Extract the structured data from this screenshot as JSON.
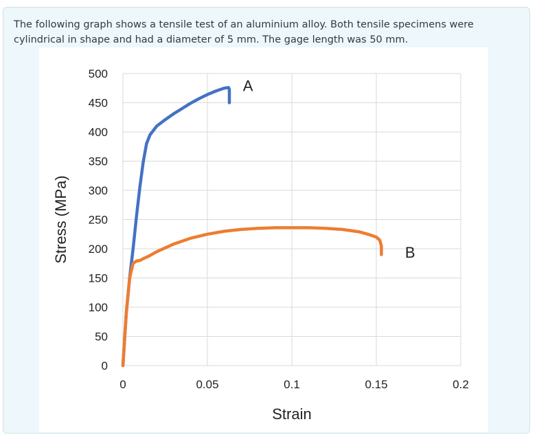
{
  "prompt": {
    "line1": "The following graph shows a tensile test of an aluminium alloy. Both tensile specimens were",
    "line2": "cylindrical in shape and had a diameter of 5 mm. The gage length was 50 mm."
  },
  "chart_data": {
    "type": "line",
    "title": "",
    "xlabel": "Strain",
    "ylabel": "Stress (MPa)",
    "xlim": [
      0,
      0.2
    ],
    "ylim": [
      0,
      500
    ],
    "grid": true,
    "x_ticks": [
      "0",
      "0.05",
      "0.1",
      "0.15",
      "0.2"
    ],
    "y_ticks": [
      "0",
      "50",
      "100",
      "150",
      "200",
      "250",
      "300",
      "350",
      "400",
      "450",
      "500"
    ],
    "series": [
      {
        "name": "A",
        "color": "#4472c4",
        "x": [
          0,
          0.002,
          0.004,
          0.006,
          0.008,
          0.01,
          0.012,
          0.014,
          0.016,
          0.02,
          0.025,
          0.03,
          0.035,
          0.04,
          0.045,
          0.05,
          0.055,
          0.06,
          0.0625,
          0.063,
          0.063,
          0.063
        ],
        "y": [
          0,
          90,
          150,
          200,
          255,
          305,
          348,
          380,
          395,
          410,
          421,
          431,
          440,
          449,
          457,
          464,
          470,
          475,
          476,
          473,
          460,
          450
        ]
      },
      {
        "name": "B",
        "color": "#ed7d31",
        "x": [
          0,
          0.002,
          0.004,
          0.006,
          0.008,
          0.01,
          0.012,
          0.015,
          0.02,
          0.03,
          0.04,
          0.05,
          0.06,
          0.07,
          0.08,
          0.09,
          0.1,
          0.11,
          0.12,
          0.13,
          0.14,
          0.145,
          0.15,
          0.152,
          0.153,
          0.153
        ],
        "y": [
          0,
          90,
          150,
          175,
          179,
          180,
          183,
          187,
          195,
          208,
          218,
          225,
          230,
          233,
          235,
          236,
          236,
          236,
          235,
          233,
          229,
          225,
          220,
          215,
          205,
          190
        ]
      }
    ],
    "annotations": [
      {
        "text": "A",
        "x": 0.074,
        "y": 470
      },
      {
        "text": "B",
        "x": 0.17,
        "y": 185
      }
    ]
  }
}
